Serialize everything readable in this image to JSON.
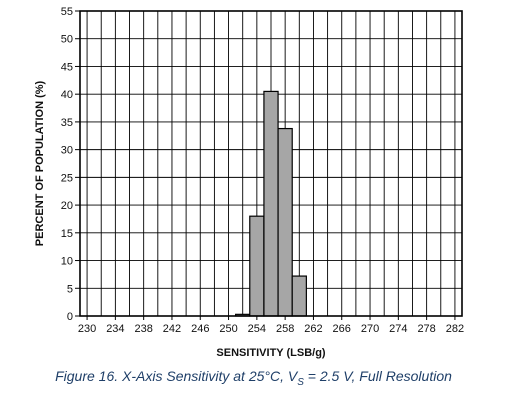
{
  "chart_data": {
    "type": "bar",
    "title": "",
    "xlabel": "SENSITIVITY (LSB/g)",
    "ylabel": "PERCENT OF POPULATION (%)",
    "bin_width": 2,
    "xlim": [
      229,
      283
    ],
    "ylim": [
      0,
      55
    ],
    "x_ticks": [
      230,
      234,
      238,
      242,
      246,
      250,
      254,
      258,
      262,
      266,
      270,
      274,
      278,
      282
    ],
    "y_ticks": [
      0,
      5,
      10,
      15,
      20,
      25,
      30,
      35,
      40,
      45,
      50,
      55
    ],
    "vertical_gridlines": [
      230,
      232,
      234,
      236,
      238,
      240,
      242,
      244,
      246,
      248,
      250,
      252,
      254,
      256,
      258,
      260,
      262,
      264,
      266,
      268,
      270,
      272,
      274,
      276,
      278,
      280,
      282
    ],
    "grid": true,
    "bars": [
      {
        "x": 252,
        "value": 0.3
      },
      {
        "x": 254,
        "value": 18
      },
      {
        "x": 256,
        "value": 40.5
      },
      {
        "x": 258,
        "value": 33.8
      },
      {
        "x": 260,
        "value": 7.2
      }
    ],
    "bar_color": "#a6a6a6",
    "grid_color": "#000000"
  },
  "caption": {
    "prefix": "Figure 16. X-Axis Sensitivity at 25°C, V",
    "subscript": "S",
    "suffix": " = 2.5 V, Full Resolution"
  },
  "colors": {
    "caption": "#1f3f68"
  }
}
